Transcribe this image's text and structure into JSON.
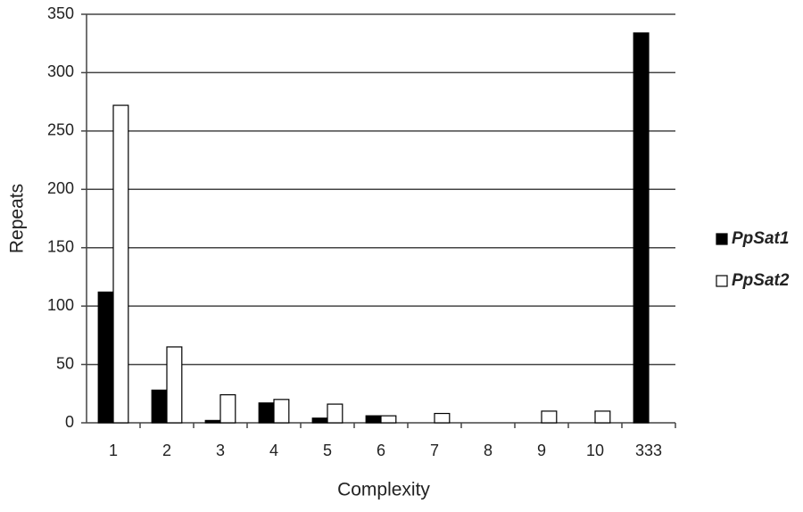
{
  "chart_data": {
    "type": "bar",
    "x_label": "Complexity",
    "y_label": "Repeats",
    "categories": [
      "1",
      "2",
      "3",
      "4",
      "5",
      "6",
      "7",
      "8",
      "9",
      "10",
      "333"
    ],
    "series": [
      {
        "name": "PpSat1",
        "color": "#000000",
        "values": [
          112,
          28,
          2,
          17,
          4,
          6,
          0,
          0,
          0,
          0,
          334
        ]
      },
      {
        "name": "PpSat2",
        "color": "#ffffff",
        "values": [
          272,
          65,
          24,
          20,
          16,
          6,
          8,
          0,
          10,
          10,
          0
        ]
      }
    ],
    "ylim": [
      0,
      350
    ],
    "yticks": [
      0,
      50,
      100,
      150,
      200,
      250,
      300,
      350
    ],
    "grid": true,
    "legend": "right"
  }
}
